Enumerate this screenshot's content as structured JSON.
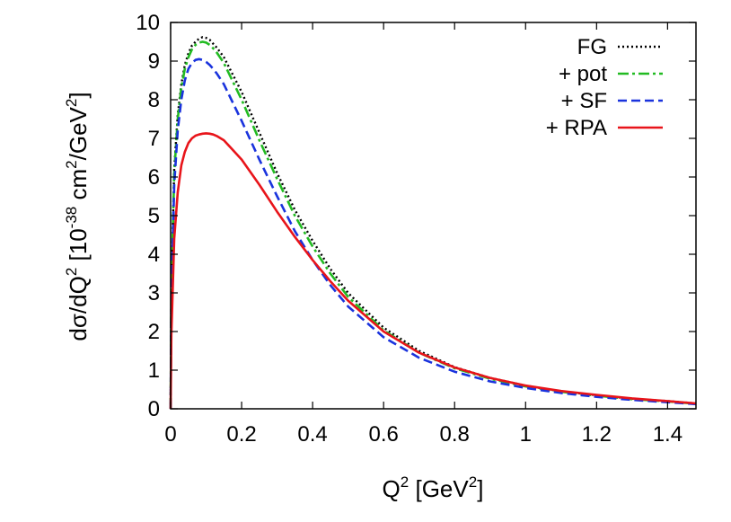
{
  "chart_data": {
    "type": "line",
    "title": "",
    "xlabel": {
      "base": "Q",
      "sup": "2",
      "rest_open": " [GeV",
      "rest_sup": "2",
      "rest_close": "]"
    },
    "ylabel": {
      "p1": "dσ/dQ",
      "s1": "2",
      "p2": " [10",
      "s2": "-38",
      "p3": " cm",
      "s3": "2",
      "p4": "/GeV",
      "s4": "2",
      "p5": "]"
    },
    "xlim": [
      0,
      1.48
    ],
    "ylim": [
      0,
      10
    ],
    "x_ticks": [
      0,
      0.2,
      0.4,
      0.6,
      0.8,
      1,
      1.2,
      1.4
    ],
    "x_tick_labels": [
      "0",
      "0.2",
      "0.4",
      "0.6",
      "0.8",
      "1",
      "1.2",
      "1.4"
    ],
    "y_ticks": [
      0,
      1,
      2,
      3,
      4,
      5,
      6,
      7,
      8,
      9,
      10
    ],
    "y_tick_labels": [
      "0",
      "1",
      "2",
      "3",
      "4",
      "5",
      "6",
      "7",
      "8",
      "9",
      "10"
    ],
    "grid": false,
    "legend_position": "top-right",
    "series": [
      {
        "name": "FG",
        "color": "#000000",
        "style": "dotted",
        "x": [
          0,
          0.002,
          0.01,
          0.02,
          0.03,
          0.04,
          0.05,
          0.06,
          0.07,
          0.08,
          0.09,
          0.1,
          0.11,
          0.12,
          0.13,
          0.15,
          0.2,
          0.25,
          0.3,
          0.35,
          0.4,
          0.45,
          0.5,
          0.6,
          0.7,
          0.8,
          0.9,
          1.0,
          1.1,
          1.2,
          1.3,
          1.4,
          1.48
        ],
        "y": [
          0,
          3.0,
          6.2,
          7.6,
          8.4,
          8.9,
          9.2,
          9.4,
          9.5,
          9.58,
          9.62,
          9.6,
          9.55,
          9.45,
          9.35,
          9.1,
          8.2,
          7.15,
          6.1,
          5.15,
          4.35,
          3.62,
          3.0,
          2.1,
          1.5,
          1.08,
          0.8,
          0.6,
          0.45,
          0.35,
          0.26,
          0.2,
          0.14
        ]
      },
      {
        "name": "+ pot",
        "color": "#22bb22",
        "style": "dashdot",
        "x": [
          0,
          0.002,
          0.01,
          0.02,
          0.03,
          0.04,
          0.05,
          0.06,
          0.07,
          0.08,
          0.09,
          0.1,
          0.11,
          0.12,
          0.13,
          0.15,
          0.2,
          0.25,
          0.3,
          0.35,
          0.4,
          0.45,
          0.5,
          0.6,
          0.7,
          0.8,
          0.9,
          1.0,
          1.1,
          1.2,
          1.3,
          1.4,
          1.48
        ],
        "y": [
          0,
          3.0,
          6.1,
          7.5,
          8.3,
          8.8,
          9.1,
          9.3,
          9.42,
          9.48,
          9.5,
          9.48,
          9.42,
          9.33,
          9.22,
          8.95,
          8.0,
          6.95,
          5.95,
          5.0,
          4.2,
          3.5,
          2.9,
          2.03,
          1.45,
          1.05,
          0.78,
          0.58,
          0.44,
          0.34,
          0.25,
          0.19,
          0.13
        ]
      },
      {
        "name": "+ SF",
        "color": "#1a33dd",
        "style": "dashed",
        "x": [
          0,
          0.002,
          0.01,
          0.02,
          0.03,
          0.04,
          0.05,
          0.06,
          0.07,
          0.08,
          0.09,
          0.1,
          0.11,
          0.12,
          0.13,
          0.15,
          0.2,
          0.25,
          0.3,
          0.35,
          0.4,
          0.45,
          0.5,
          0.6,
          0.7,
          0.8,
          0.9,
          1.0,
          1.1,
          1.2,
          1.3,
          1.4,
          1.48
        ],
        "y": [
          0,
          2.8,
          5.8,
          7.2,
          8.0,
          8.5,
          8.8,
          8.95,
          9.03,
          9.05,
          9.03,
          8.98,
          8.9,
          8.8,
          8.68,
          8.4,
          7.45,
          6.45,
          5.5,
          4.6,
          3.85,
          3.2,
          2.65,
          1.85,
          1.32,
          0.96,
          0.71,
          0.54,
          0.41,
          0.31,
          0.23,
          0.17,
          0.12
        ]
      },
      {
        "name": "+ RPA",
        "color": "#e8141a",
        "style": "solid",
        "x": [
          0,
          0.002,
          0.01,
          0.02,
          0.03,
          0.04,
          0.05,
          0.06,
          0.07,
          0.08,
          0.09,
          0.1,
          0.11,
          0.12,
          0.13,
          0.15,
          0.2,
          0.25,
          0.3,
          0.35,
          0.4,
          0.45,
          0.5,
          0.6,
          0.7,
          0.8,
          0.9,
          1.0,
          1.1,
          1.2,
          1.3,
          1.4,
          1.48
        ],
        "y": [
          0,
          1.9,
          4.4,
          5.6,
          6.3,
          6.65,
          6.88,
          7.0,
          7.07,
          7.1,
          7.12,
          7.13,
          7.12,
          7.1,
          7.06,
          6.95,
          6.45,
          5.8,
          5.1,
          4.45,
          3.85,
          3.3,
          2.8,
          2.0,
          1.45,
          1.07,
          0.8,
          0.6,
          0.46,
          0.36,
          0.27,
          0.2,
          0.14
        ]
      }
    ]
  }
}
